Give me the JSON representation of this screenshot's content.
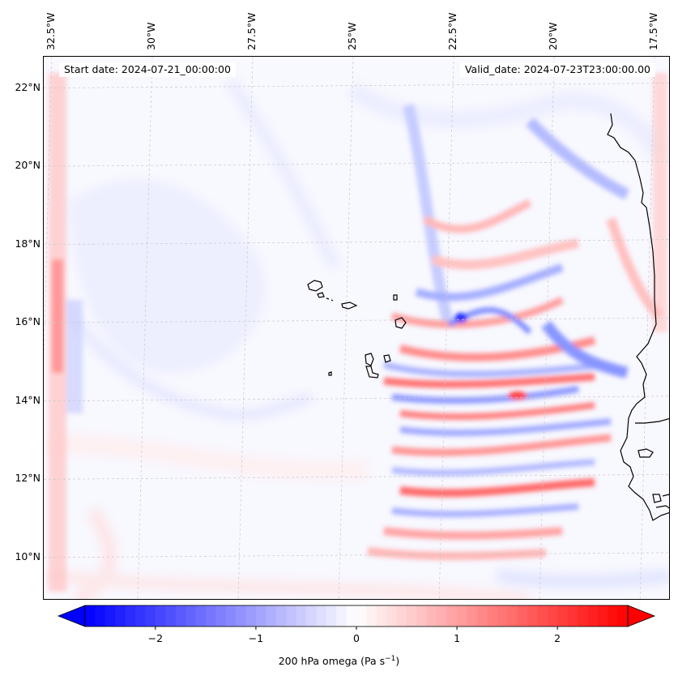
{
  "header": {
    "start_date": "Start date: 2024-07-21_00:00:00",
    "valid_date": "Valid_date: 2024-07-23T23:00:00.00"
  },
  "map": {
    "lat_range": [
      8.9,
      22.8
    ],
    "lon_range": [
      -32.7,
      -17.1
    ],
    "lat_ticks": [
      {
        "value": 22,
        "label": "22°N"
      },
      {
        "value": 20,
        "label": "20°N"
      },
      {
        "value": 18,
        "label": "18°N"
      },
      {
        "value": 16,
        "label": "16°N"
      },
      {
        "value": 14,
        "label": "14°N"
      },
      {
        "value": 12,
        "label": "12°N"
      },
      {
        "value": 10,
        "label": "10°N"
      }
    ],
    "lon_ticks": [
      {
        "value": -32.5,
        "label": "32.5°W"
      },
      {
        "value": -30,
        "label": "30°W"
      },
      {
        "value": -27.5,
        "label": "27.5°W"
      },
      {
        "value": -25,
        "label": "25°W"
      },
      {
        "value": -22.5,
        "label": "22.5°W"
      },
      {
        "value": -20,
        "label": "20°W"
      },
      {
        "value": -17.5,
        "label": "17.5°W"
      }
    ],
    "field": "200 hPa omega",
    "colors": {
      "negative": "#0000ff",
      "zero": "#ffffff",
      "positive": "#ff0000",
      "coast": "#000000",
      "grid": "#c8c8c8"
    }
  },
  "colorbar": {
    "min": -2.7,
    "max": 2.7,
    "ticks": [
      {
        "value": -2,
        "label": "−2"
      },
      {
        "value": -1,
        "label": "−1"
      },
      {
        "value": 0,
        "label": "0"
      },
      {
        "value": 1,
        "label": "1"
      },
      {
        "value": 2,
        "label": "2"
      }
    ],
    "label_main": "200 hPa omega (Pa s",
    "label_exp": "−1",
    "label_tail": ")"
  }
}
